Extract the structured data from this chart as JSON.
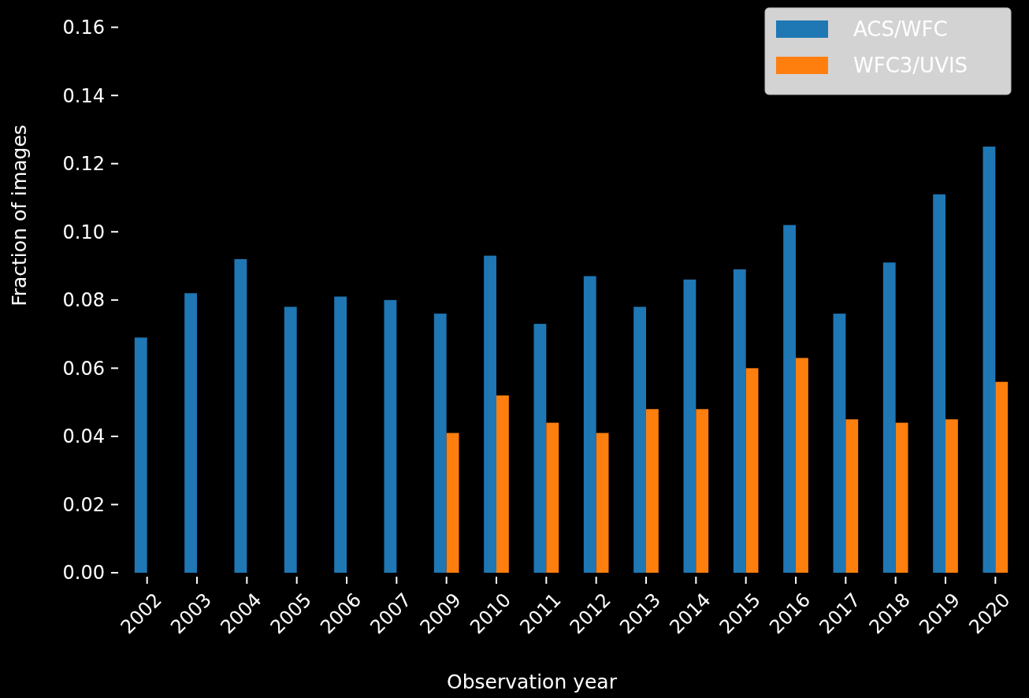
{
  "chart_data": {
    "type": "bar",
    "xlabel": "Observation year",
    "ylabel": "Fraction of images",
    "categories": [
      "2002",
      "2003",
      "2004",
      "2005",
      "2006",
      "2007",
      "2009",
      "2010",
      "2011",
      "2012",
      "2013",
      "2014",
      "2015",
      "2016",
      "2017",
      "2018",
      "2019",
      "2020"
    ],
    "series": [
      {
        "name": "ACS/WFC",
        "color": "#1f77b4",
        "values": [
          0.069,
          0.082,
          0.092,
          0.078,
          0.081,
          0.08,
          0.076,
          0.093,
          0.073,
          0.087,
          0.078,
          0.086,
          0.089,
          0.102,
          0.076,
          0.091,
          0.111,
          0.125
        ]
      },
      {
        "name": "WFC3/UVIS",
        "color": "#ff7f0e",
        "values": [
          null,
          null,
          null,
          null,
          null,
          null,
          0.041,
          0.052,
          0.044,
          0.041,
          0.048,
          0.048,
          0.06,
          0.063,
          0.045,
          0.044,
          0.045,
          0.056
        ]
      }
    ],
    "ylim": [
      0,
      0.168
    ],
    "yticks": [
      {
        "value": 0,
        "label": "0.00"
      },
      {
        "value": 0.02,
        "label": "0.02"
      },
      {
        "value": 0.04,
        "label": "0.04"
      },
      {
        "value": 0.06,
        "label": "0.06"
      },
      {
        "value": 0.08,
        "label": "0.08"
      },
      {
        "value": 0.1,
        "label": "0.10"
      },
      {
        "value": 0.12,
        "label": "0.12"
      },
      {
        "value": 0.14,
        "label": "0.14"
      },
      {
        "value": 0.16,
        "label": "0.16"
      }
    ],
    "grid": false,
    "legend": "top right"
  }
}
